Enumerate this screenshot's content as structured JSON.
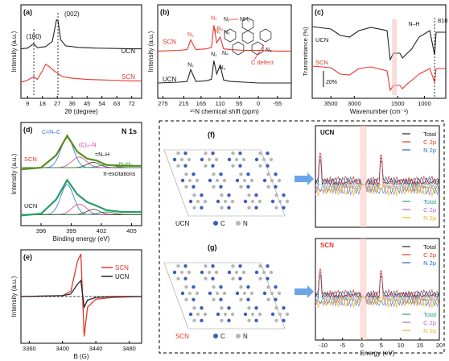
{
  "figure": {
    "panel_labels": [
      "(a)",
      "(b)",
      "(c)",
      "(d)",
      "(e)",
      "(f)",
      "(g)"
    ],
    "colors": {
      "ucn": "#222222",
      "scn": "#e8352b",
      "c2p": "#e8352b",
      "n2p": "#1f6fc2",
      "total_dos": "#222222",
      "c2p_lower": "#b06bd1",
      "n2p_lower": "#f0b020",
      "teal": "#2a9d8f",
      "green_fit": "#2f8f2f"
    }
  },
  "chart_data": [
    {
      "id": "a",
      "type": "line",
      "xlabel": "2θ (degree)",
      "ylabel": "Intensity (a.u.)",
      "xticks": [
        "9",
        "18",
        "27",
        "36",
        "45",
        "54",
        "63",
        "72"
      ],
      "xlim": [
        5,
        78
      ],
      "annotations": [
        "(100)",
        "(002)"
      ],
      "series": [
        {
          "name": "UCN",
          "x": [
            5,
            9,
            12.8,
            15,
            20,
            24,
            26.5,
            27.5,
            29,
            32,
            40,
            50,
            60,
            72,
            78
          ],
          "y": [
            0.2,
            0.22,
            0.34,
            0.23,
            0.26,
            0.4,
            0.98,
            0.95,
            0.45,
            0.28,
            0.24,
            0.22,
            0.21,
            0.2,
            0.2
          ]
        },
        {
          "name": "SCN",
          "x": [
            5,
            9,
            12.8,
            15,
            18,
            20,
            22,
            25,
            27.5,
            30,
            35,
            45,
            60,
            72,
            78
          ],
          "y": [
            0.02,
            0.05,
            0.1,
            0.06,
            0.18,
            0.27,
            0.24,
            0.18,
            0.14,
            0.1,
            0.08,
            0.06,
            0.05,
            0.04,
            0.04
          ]
        }
      ],
      "legend": [
        "UCN",
        "SCN"
      ]
    },
    {
      "id": "b",
      "type": "line",
      "xlabel": "¹⁵N chemical shift (ppm)",
      "ylabel": "Intensity (a.u.)",
      "xticks": [
        "275",
        "215",
        "165",
        "110",
        "55",
        "0",
        "-55"
      ],
      "xlim": [
        290,
        -95
      ],
      "peak_labels": [
        "N₃",
        "N₂",
        "N₁",
        "N₄",
        "N₂",
        "N₁",
        "N₃"
      ],
      "inset": {
        "label_nh2": "N₁",
        "label_nh2_group": "NH₂",
        "defect_label": "C defect",
        "atom_labels": [
          "N₂",
          "N₃",
          "N₄"
        ]
      },
      "series": [
        {
          "name": "SCN",
          "x": [
            290,
            230,
            205,
            195,
            180,
            150,
            135,
            128,
            120,
            110,
            100,
            80,
            40,
            0,
            -55,
            -95
          ],
          "y": [
            0.55,
            0.56,
            0.57,
            0.7,
            0.57,
            0.58,
            0.6,
            0.9,
            0.66,
            0.74,
            0.58,
            0.57,
            0.56,
            0.56,
            0.55,
            0.55
          ]
        },
        {
          "name": "UCN",
          "x": [
            290,
            230,
            205,
            195,
            180,
            150,
            135,
            128,
            120,
            110,
            100,
            80,
            40,
            0,
            -55,
            -95
          ],
          "y": [
            0.12,
            0.13,
            0.14,
            0.3,
            0.14,
            0.15,
            0.17,
            0.42,
            0.24,
            0.36,
            0.16,
            0.14,
            0.13,
            0.12,
            0.12,
            0.12
          ]
        }
      ]
    },
    {
      "id": "c",
      "type": "line",
      "xlabel": "Wavenumber (cm⁻¹)",
      "ylabel": "Transmittance (%)",
      "xticks": [
        "3500",
        "3000",
        "1500",
        "1000"
      ],
      "scale_bar": "20%",
      "annotation_810": "810",
      "group_label": "N–H",
      "series": [
        {
          "name": "UCN",
          "x": [
            3900,
            3500,
            3300,
            3100,
            2900,
            2000,
            1700,
            1640,
            1580,
            1460,
            1410,
            1320,
            1240,
            1100,
            900,
            810,
            780,
            600
          ],
          "y": [
            0.85,
            0.82,
            0.74,
            0.72,
            0.8,
            0.84,
            0.8,
            0.44,
            0.52,
            0.52,
            0.46,
            0.52,
            0.57,
            0.72,
            0.8,
            0.5,
            0.78,
            0.78
          ]
        },
        {
          "name": "SCN",
          "x": [
            3900,
            3500,
            3300,
            3100,
            2900,
            2000,
            1700,
            1640,
            1580,
            1460,
            1410,
            1320,
            1240,
            1100,
            900,
            810,
            780,
            600
          ],
          "y": [
            0.36,
            0.34,
            0.26,
            0.25,
            0.33,
            0.35,
            0.3,
            0.06,
            0.12,
            0.12,
            0.08,
            0.14,
            0.18,
            0.26,
            0.33,
            0.16,
            0.33,
            0.33
          ]
        }
      ]
    },
    {
      "id": "d",
      "type": "line",
      "xlabel": "Binding energy (eV)",
      "ylabel": "Intensity (a.u.)",
      "xticks": [
        "396",
        "399",
        "402",
        "405"
      ],
      "title": "N 1s",
      "components": [
        "C=N–C",
        "(C)₃–N",
        "=N–H",
        "–N–H₂",
        "π-excitations"
      ],
      "series": [
        {
          "name": "SCN",
          "x": [
            394,
            396,
            397.5,
            398.6,
            399.6,
            400.6,
            401.5,
            402.5,
            404,
            406
          ],
          "y": [
            0.58,
            0.6,
            0.74,
            0.96,
            0.78,
            0.7,
            0.68,
            0.63,
            0.62,
            0.62
          ]
        },
        {
          "name": "UCN",
          "x": [
            394,
            396,
            397.5,
            398.6,
            399.6,
            400.6,
            401.5,
            402.5,
            404,
            406
          ],
          "y": [
            0.06,
            0.08,
            0.24,
            0.46,
            0.3,
            0.21,
            0.17,
            0.12,
            0.1,
            0.1
          ]
        }
      ],
      "legend": [
        "SCN",
        "UCN"
      ]
    },
    {
      "id": "e",
      "type": "line",
      "xlabel": "B (G)",
      "ylabel": "Intensity (a.u.)",
      "xticks": [
        "3360",
        "3400",
        "3440",
        "3480"
      ],
      "xlim": [
        3350,
        3495
      ],
      "series": [
        {
          "name": "SCN",
          "x": [
            3350,
            3400,
            3410,
            3418,
            3422,
            3426,
            3430,
            3440,
            3460,
            3495
          ],
          "y": [
            0,
            0.01,
            0.06,
            0.4,
            0.48,
            -0.45,
            -0.12,
            -0.03,
            -0.01,
            0
          ]
        },
        {
          "name": "UCN",
          "x": [
            3350,
            3400,
            3410,
            3418,
            3422,
            3426,
            3430,
            3440,
            3460,
            3495
          ],
          "y": [
            0,
            0.01,
            0.03,
            0.14,
            0.18,
            -0.12,
            -0.04,
            -0.01,
            0,
            0
          ]
        }
      ],
      "legend": [
        "SCN",
        "UCN"
      ]
    },
    {
      "id": "f_g",
      "type": "line",
      "xlabel": "Energy (eV)",
      "xticks": [
        "-10",
        "-5",
        "0",
        "5",
        "10",
        "15",
        "20"
      ],
      "panels": [
        {
          "title": "UCN",
          "legend_top": [
            "Total",
            "C 2p",
            "N 2p"
          ],
          "legend_bottom": [
            "Total",
            "C 2p",
            "N 2p"
          ]
        },
        {
          "title": "SCN",
          "legend_top": [
            "Total",
            "C 2p",
            "N 2p"
          ],
          "legend_bottom": [
            "Total",
            "C 2p",
            "N 2p"
          ]
        }
      ],
      "structure_labels": {
        "f": "UCN",
        "g": "SCN",
        "c": "C",
        "n": "N"
      }
    }
  ]
}
